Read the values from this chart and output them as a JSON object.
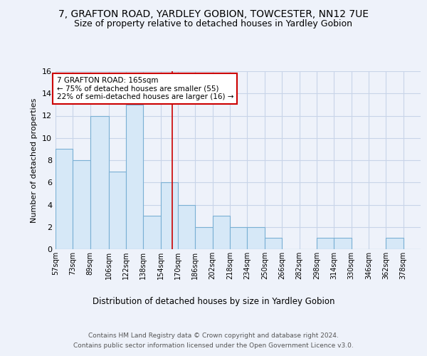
{
  "title_line1": "7, GRAFTON ROAD, YARDLEY GOBION, TOWCESTER, NN12 7UE",
  "title_line2": "Size of property relative to detached houses in Yardley Gobion",
  "xlabel": "Distribution of detached houses by size in Yardley Gobion",
  "ylabel": "Number of detached properties",
  "footer_line1": "Contains HM Land Registry data © Crown copyright and database right 2024.",
  "footer_line2": "Contains public sector information licensed under the Open Government Licence v3.0.",
  "bin_labels": [
    "57sqm",
    "73sqm",
    "89sqm",
    "106sqm",
    "122sqm",
    "138sqm",
    "154sqm",
    "170sqm",
    "186sqm",
    "202sqm",
    "218sqm",
    "234sqm",
    "250sqm",
    "266sqm",
    "282sqm",
    "298sqm",
    "314sqm",
    "330sqm",
    "346sqm",
    "362sqm",
    "378sqm"
  ],
  "bin_edges": [
    57,
    73,
    89,
    106,
    122,
    138,
    154,
    170,
    186,
    202,
    218,
    234,
    250,
    266,
    282,
    298,
    314,
    330,
    346,
    362,
    378,
    394
  ],
  "values": [
    9,
    8,
    12,
    7,
    13,
    3,
    6,
    4,
    2,
    3,
    2,
    2,
    1,
    0,
    0,
    1,
    1,
    0,
    0,
    1,
    0
  ],
  "bar_facecolor": "#d6e8f7",
  "bar_edgecolor": "#7ab0d4",
  "property_line_x": 165,
  "property_line_color": "#cc0000",
  "annotation_text": "7 GRAFTON ROAD: 165sqm\n← 75% of detached houses are smaller (55)\n22% of semi-detached houses are larger (16) →",
  "annotation_box_edgecolor": "#cc0000",
  "annotation_box_facecolor": "#ffffff",
  "ylim": [
    0,
    16
  ],
  "yticks": [
    0,
    2,
    4,
    6,
    8,
    10,
    12,
    14,
    16
  ],
  "grid_color": "#c8d4e8",
  "background_color": "#eef2fa",
  "title_fontsize": 10,
  "subtitle_fontsize": 9
}
